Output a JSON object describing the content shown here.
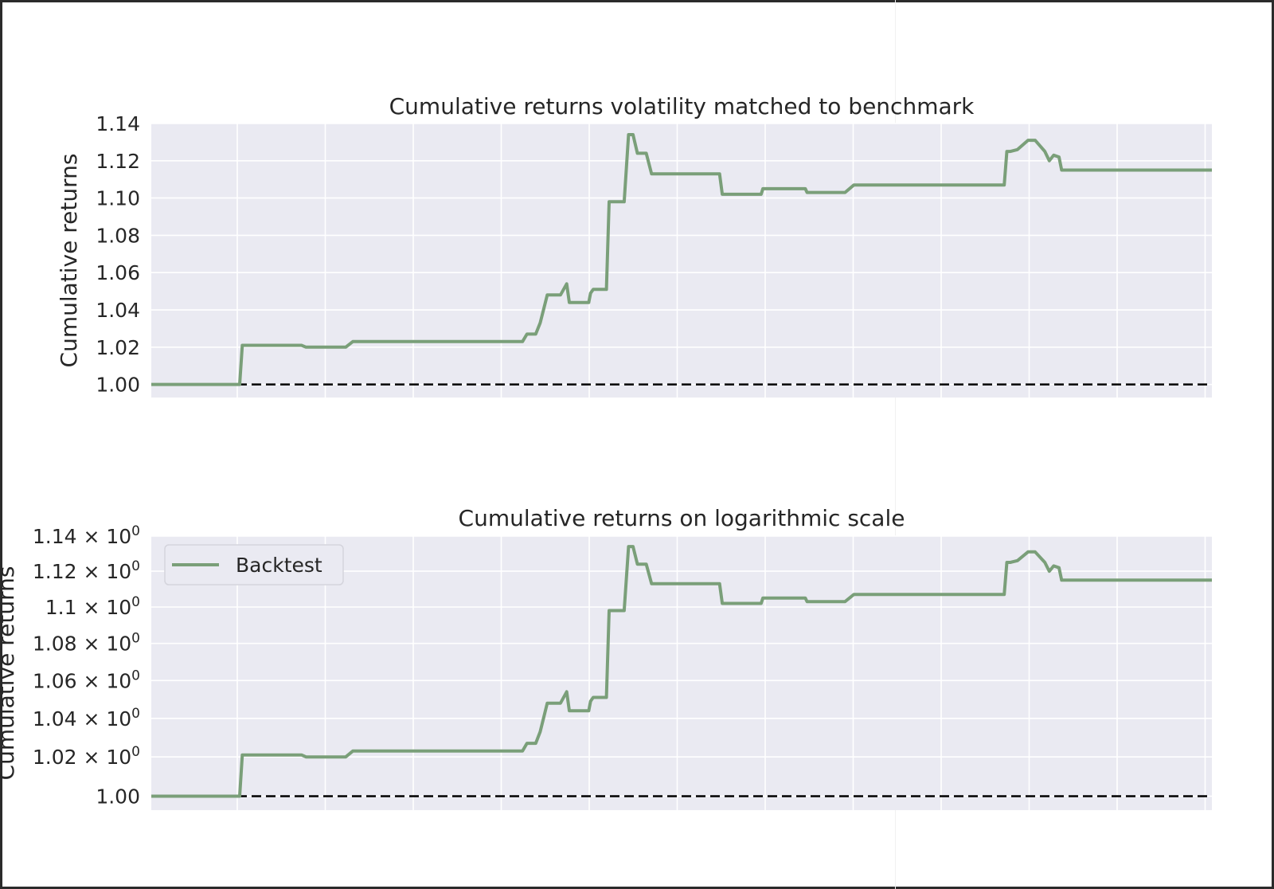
{
  "chart_data": [
    {
      "type": "line",
      "title": "Cumulative returns volatility matched to benchmark",
      "ylabel": "Cumulative returns",
      "xlabel": "",
      "yscale": "linear",
      "ylim": [
        0.993,
        1.14
      ],
      "yticks": [
        1.0,
        1.02,
        1.04,
        1.06,
        1.08,
        1.1,
        1.12,
        1.14
      ],
      "ytick_labels": [
        "1.00",
        "1.02",
        "1.04",
        "1.06",
        "1.08",
        "1.10",
        "1.12",
        "1.14"
      ],
      "x_tick_count": 12,
      "grid": true,
      "legend": null,
      "baseline": {
        "y": 1.0,
        "style": "dashed",
        "color": "#000000"
      },
      "series": [
        {
          "color": "#7a9f79",
          "x": [
            0,
            10,
            10.3,
            17,
            17.5,
            22,
            22.8,
            42,
            42.5,
            43.5,
            44,
            44.8,
            44.9,
            46.3,
            47,
            47.3,
            47.8,
            49.5,
            49.7,
            50,
            51.5,
            51.8,
            52.5,
            53,
            53.5,
            54,
            54.5,
            55,
            55.5,
            56,
            56.6,
            57.3,
            57.6,
            60,
            64.3,
            64.6,
            69,
            69.2,
            74,
            74.2,
            78.5,
            79.5,
            96.5,
            96.8,
            97.2,
            98,
            99.2,
            100,
            101.1,
            101.6,
            102.1,
            102.7,
            103,
            120
          ],
          "y": [
            1.0,
            1.0,
            1.021,
            1.021,
            1.02,
            1.02,
            1.023,
            1.023,
            1.027,
            1.027,
            1.033,
            1.048,
            1.048,
            1.048,
            1.054,
            1.044,
            1.044,
            1.044,
            1.049,
            1.051,
            1.051,
            1.098,
            1.098,
            1.098,
            1.098,
            1.134,
            1.134,
            1.124,
            1.124,
            1.124,
            1.113,
            1.113,
            1.113,
            1.113,
            1.113,
            1.102,
            1.102,
            1.105,
            1.105,
            1.103,
            1.103,
            1.107,
            1.107,
            1.125,
            1.125,
            1.126,
            1.131,
            1.131,
            1.125,
            1.12,
            1.123,
            1.122,
            1.115,
            1.115
          ]
        }
      ]
    },
    {
      "type": "line",
      "title": "Cumulative returns on logarithmic scale",
      "ylabel": "Cumulative returns",
      "xlabel": "",
      "yscale": "log",
      "ylim": [
        0.993,
        1.14
      ],
      "yticks": [
        1.0,
        1.02,
        1.04,
        1.06,
        1.08,
        1.1,
        1.12,
        1.14
      ],
      "ytick_labels": [
        {
          "mant": "1.00",
          "exp": ""
        },
        {
          "mant": "1.02 × 10",
          "exp": "0"
        },
        {
          "mant": "1.04 × 10",
          "exp": "0"
        },
        {
          "mant": "1.06 × 10",
          "exp": "0"
        },
        {
          "mant": "1.08 × 10",
          "exp": "0"
        },
        {
          "mant": "1.1 × 10",
          "exp": "0"
        },
        {
          "mant": "1.12 × 10",
          "exp": "0"
        },
        {
          "mant": "1.14 × 10",
          "exp": "0"
        }
      ],
      "x_tick_count": 12,
      "grid": true,
      "legend": {
        "position": "top-left",
        "entries": [
          {
            "label": "Backtest",
            "color": "#7a9f79"
          }
        ]
      },
      "baseline": {
        "y": 1.0,
        "style": "dashed",
        "color": "#000000"
      },
      "series": [
        {
          "name": "Backtest",
          "color": "#7a9f79",
          "x": [
            0,
            10,
            10.3,
            17,
            17.5,
            22,
            22.8,
            42,
            42.5,
            43.5,
            44,
            44.8,
            44.9,
            46.3,
            47,
            47.3,
            47.8,
            49.5,
            49.7,
            50,
            51.5,
            51.8,
            52.5,
            53,
            53.5,
            54,
            54.5,
            55,
            55.5,
            56,
            56.6,
            57.3,
            57.6,
            60,
            64.3,
            64.6,
            69,
            69.2,
            74,
            74.2,
            78.5,
            79.5,
            96.5,
            96.8,
            97.2,
            98,
            99.2,
            100,
            101.1,
            101.6,
            102.1,
            102.7,
            103,
            120
          ],
          "y": [
            1.0,
            1.0,
            1.021,
            1.021,
            1.02,
            1.02,
            1.023,
            1.023,
            1.027,
            1.027,
            1.033,
            1.048,
            1.048,
            1.048,
            1.054,
            1.044,
            1.044,
            1.044,
            1.049,
            1.051,
            1.051,
            1.098,
            1.098,
            1.098,
            1.098,
            1.134,
            1.134,
            1.124,
            1.124,
            1.124,
            1.113,
            1.113,
            1.113,
            1.113,
            1.113,
            1.102,
            1.102,
            1.105,
            1.105,
            1.103,
            1.103,
            1.107,
            1.107,
            1.125,
            1.125,
            1.126,
            1.131,
            1.131,
            1.125,
            1.12,
            1.123,
            1.122,
            1.115,
            1.115
          ]
        }
      ]
    }
  ]
}
